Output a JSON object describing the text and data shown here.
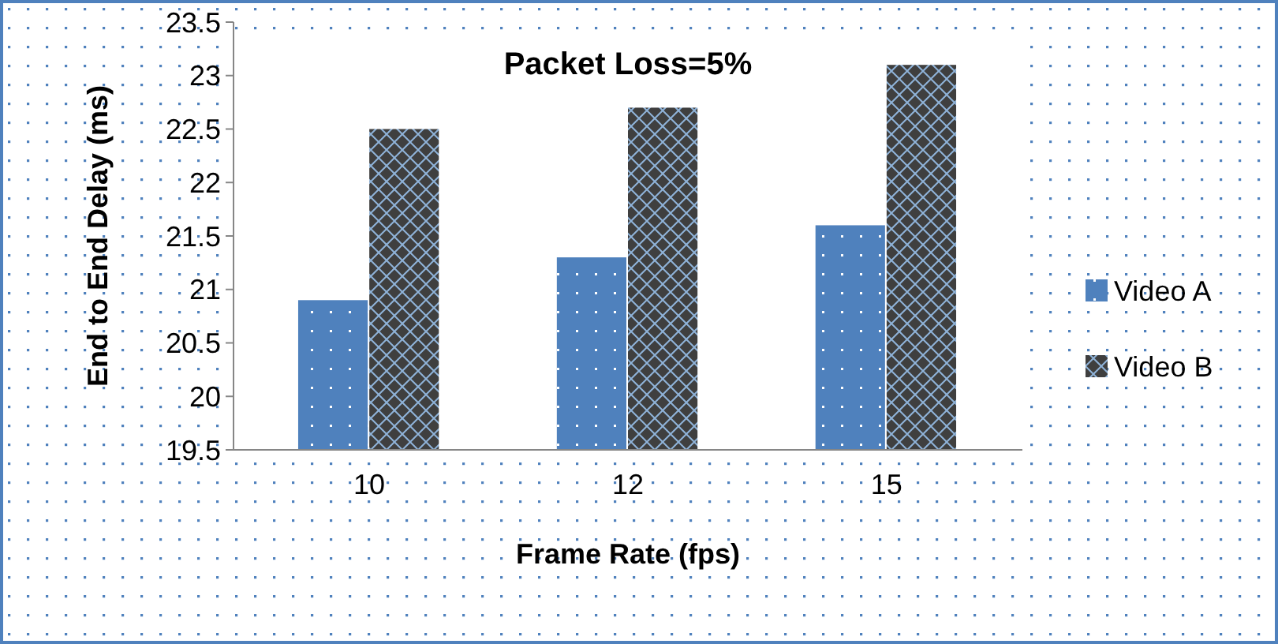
{
  "chart_data": {
    "type": "bar",
    "title": "Packet Loss=5%",
    "xlabel": "Frame Rate (fps)",
    "ylabel": "End to End Delay (ms)",
    "categories": [
      "10",
      "12",
      "15"
    ],
    "series": [
      {
        "name": "Video A",
        "color": "#4f81bd",
        "values": [
          20.9,
          21.3,
          21.6
        ]
      },
      {
        "name": "Video B",
        "color": "#3f3f3f",
        "values": [
          22.5,
          22.7,
          23.1
        ]
      }
    ],
    "ylim": [
      19.5,
      23.5
    ],
    "yticks": [
      19.5,
      20,
      20.5,
      21,
      21.5,
      22,
      22.5,
      23,
      23.5
    ],
    "grid": false,
    "legend": "right"
  }
}
